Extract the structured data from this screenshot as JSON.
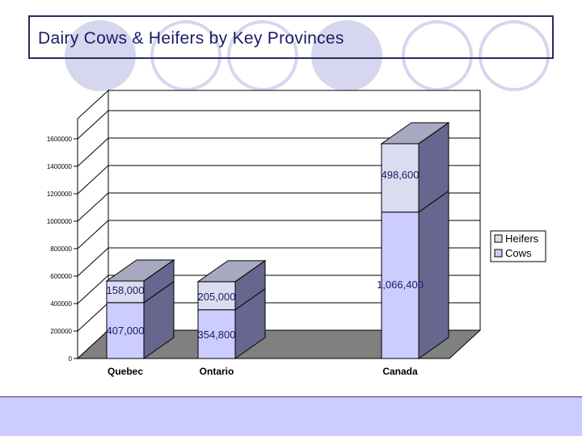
{
  "slide": {
    "title": "Dairy Cows & Heifers by Key Provinces"
  },
  "chart_data": {
    "type": "bar",
    "stacked": true,
    "three_d": true,
    "categories": [
      "Quebec",
      "Ontario",
      "Canada"
    ],
    "series": [
      {
        "name": "Cows",
        "values": [
          407000,
          354800,
          1066400
        ],
        "labels": [
          "407,000",
          "354,800",
          "1,066,400"
        ],
        "color": "#ccccff"
      },
      {
        "name": "Heifers",
        "values": [
          158000,
          205000,
          498600
        ],
        "labels": [
          "158,000",
          "205,000",
          "498,600"
        ],
        "color": "#dcdcf0"
      }
    ],
    "yticks": [
      "0",
      "200000",
      "400000",
      "600000",
      "800000",
      "1000000",
      "1200000",
      "1400000",
      "1600000"
    ],
    "ylim": [
      0,
      1600000
    ],
    "grid": true,
    "legend": {
      "position": "right",
      "order": [
        "Heifers",
        "Cows"
      ]
    },
    "colors": {
      "side": "#66668e",
      "top": "#a8a8c0",
      "floor": "#808080",
      "label": "#1a1a66"
    }
  }
}
